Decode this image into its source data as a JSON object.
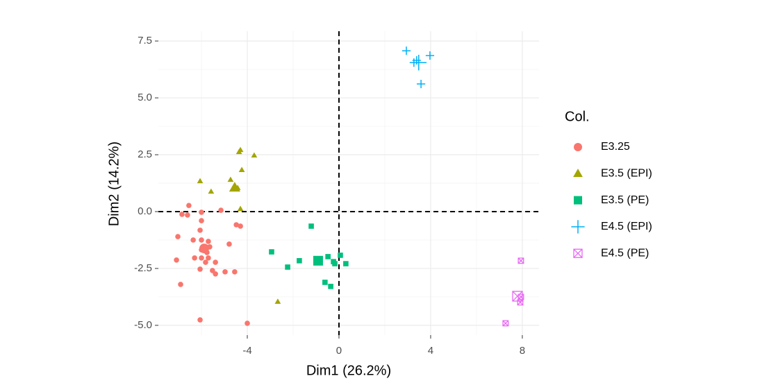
{
  "chart_data": {
    "type": "scatter",
    "xlabel": "Dim1 (26.2%)",
    "ylabel": "Dim2 (14.2%)",
    "legend_title": "Col.",
    "xlim": [
      -7.88,
      8.73
    ],
    "ylim": [
      -5.43,
      7.93
    ],
    "xticks": [
      -4,
      0,
      4,
      8
    ],
    "yticks": [
      7.5,
      {
        "value": 5,
        "label": "5.0"
      },
      2.5,
      {
        "value": 0,
        "label": "0.0"
      },
      -2.5,
      {
        "value": -5,
        "label": "-5.0"
      }
    ],
    "x_minor_ticks": [
      -6,
      -2,
      2,
      6
    ],
    "y_minor_ticks": [
      6.25,
      3.75,
      1.25,
      -1.25,
      -3.75
    ],
    "grid": true,
    "hline": 0,
    "vline": 0,
    "legend": "right",
    "series": [
      {
        "name": "E3.25",
        "color": "#F8766D",
        "shape": "circle",
        "x": [
          -6.55,
          -6.85,
          -6.61,
          -6.0,
          -6.0,
          -5.15,
          -6.06,
          -7.03,
          -6.36,
          -6.0,
          -5.7,
          -5.82,
          -6.0,
          -5.64,
          -5.76,
          -6.3,
          -7.09,
          -6.0,
          -5.7,
          -5.82,
          -5.39,
          -6.06,
          -5.52,
          -5.39,
          -4.97,
          -4.55,
          -4.79,
          -4.48,
          -4.3,
          -6.91,
          -6.06,
          -4.0
        ],
        "y": [
          0.27,
          -0.12,
          -0.15,
          -0.03,
          -0.4,
          0.06,
          -0.82,
          -1.1,
          -1.25,
          -1.25,
          -1.31,
          -1.55,
          -1.68,
          -1.55,
          -1.8,
          -2.04,
          -2.13,
          -2.04,
          -2.04,
          -2.23,
          -2.23,
          -2.53,
          -2.59,
          -2.74,
          -2.65,
          -2.65,
          -1.43,
          -0.58,
          -0.64,
          -3.2,
          -4.76,
          -4.91
        ],
        "centroid": [
          -5.88,
          -1.62
        ]
      },
      {
        "name": "E3.5 (EPI)",
        "color": "#A3A500",
        "shape": "triangle",
        "x": [
          -4.3,
          -4.36,
          -3.7,
          -4.24,
          -6.06,
          -5.58,
          -4.73,
          -4.42,
          -4.3,
          -2.67
        ],
        "y": [
          2.71,
          2.62,
          2.47,
          1.83,
          1.34,
          0.88,
          1.4,
          1.04,
          0.12,
          -3.96
        ],
        "centroid": [
          -4.55,
          1.05
        ]
      },
      {
        "name": "E3.5 (PE)",
        "color": "#00BF7D",
        "shape": "square",
        "x": [
          -1.21,
          -2.94,
          -2.24,
          -1.73,
          -0.48,
          -0.24,
          -0.18,
          0.06,
          0.3,
          -0.61,
          -0.36,
          -1.0
        ],
        "y": [
          -0.64,
          -1.77,
          -2.44,
          -2.16,
          -1.98,
          -2.2,
          -2.29,
          -1.92,
          -2.29,
          -3.11,
          -3.29,
          -2.2
        ],
        "centroid": [
          -0.91,
          -2.16
        ]
      },
      {
        "name": "E4.5 (EPI)",
        "color": "#00B0F6",
        "shape": "plus",
        "x": [
          2.94,
          3.97,
          3.39,
          3.27,
          3.58
        ],
        "y": [
          7.07,
          6.86,
          6.65,
          6.55,
          5.61
        ],
        "centroid": [
          3.48,
          6.55
        ]
      },
      {
        "name": "E4.5 (PE)",
        "color": "#E76BF3",
        "shape": "boxcross",
        "x": [
          7.94,
          7.94,
          7.91,
          7.27
        ],
        "y": [
          -2.16,
          -3.75,
          -3.99,
          -4.91
        ],
        "centroid": [
          7.79,
          -3.72
        ]
      }
    ]
  }
}
